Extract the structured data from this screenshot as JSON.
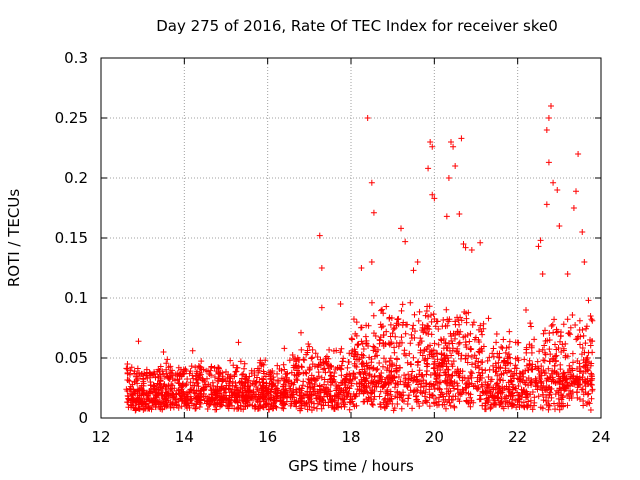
{
  "chart_data": {
    "type": "scatter",
    "title": "Day 275 of 2016, Rate Of TEC Index for receiver ske0",
    "xlabel": "GPS time / hours",
    "ylabel": "ROTI / TECUs",
    "xlim": [
      12,
      24
    ],
    "ylim": [
      0,
      0.3
    ],
    "x_ticks": [
      12,
      14,
      16,
      18,
      20,
      22,
      24
    ],
    "y_ticks": [
      0,
      0.05,
      0.1,
      0.15,
      0.2,
      0.25,
      0.3
    ],
    "x_tick_labels": [
      "12",
      "14",
      "16",
      "18",
      "20",
      "22",
      "24"
    ],
    "y_tick_labels": [
      "0",
      "0.05",
      "0.1",
      "0.15",
      "0.2",
      "0.25",
      "0.3"
    ],
    "grid": true,
    "marker": "plus",
    "marker_color": "#ff0000",
    "x_range_data": [
      12.6,
      23.8
    ],
    "series": [
      {
        "name": "ROTI",
        "x": [
          12.9,
          13.5,
          14.2,
          15.3,
          16.4,
          16.8,
          17.25,
          17.3,
          17.3,
          17.75,
          18.25,
          18.4,
          18.5,
          18.55,
          18.5,
          19.2,
          19.3,
          19.5,
          19.6,
          19.85,
          19.9,
          19.95,
          19.95,
          20.0,
          20.3,
          20.35,
          20.4,
          20.45,
          20.5,
          20.6,
          20.65,
          20.7,
          20.75,
          20.9,
          21.1,
          21.3,
          21.5,
          21.8,
          22.2,
          22.5,
          22.55,
          22.6,
          22.7,
          22.75,
          22.8,
          22.7,
          22.75,
          22.85,
          22.95,
          23.0,
          23.2,
          23.35,
          23.4,
          23.45,
          23.55,
          23.6,
          23.7,
          23.75
        ],
        "y": [
          0.064,
          0.055,
          0.056,
          0.063,
          0.058,
          0.071,
          0.152,
          0.125,
          0.092,
          0.095,
          0.125,
          0.25,
          0.196,
          0.171,
          0.13,
          0.158,
          0.147,
          0.123,
          0.13,
          0.208,
          0.23,
          0.226,
          0.186,
          0.183,
          0.168,
          0.2,
          0.23,
          0.226,
          0.21,
          0.17,
          0.233,
          0.145,
          0.142,
          0.14,
          0.146,
          0.083,
          0.07,
          0.072,
          0.09,
          0.143,
          0.148,
          0.12,
          0.178,
          0.213,
          0.26,
          0.24,
          0.25,
          0.196,
          0.19,
          0.16,
          0.12,
          0.175,
          0.189,
          0.22,
          0.155,
          0.13,
          0.098,
          0.085
        ]
      }
    ]
  }
}
